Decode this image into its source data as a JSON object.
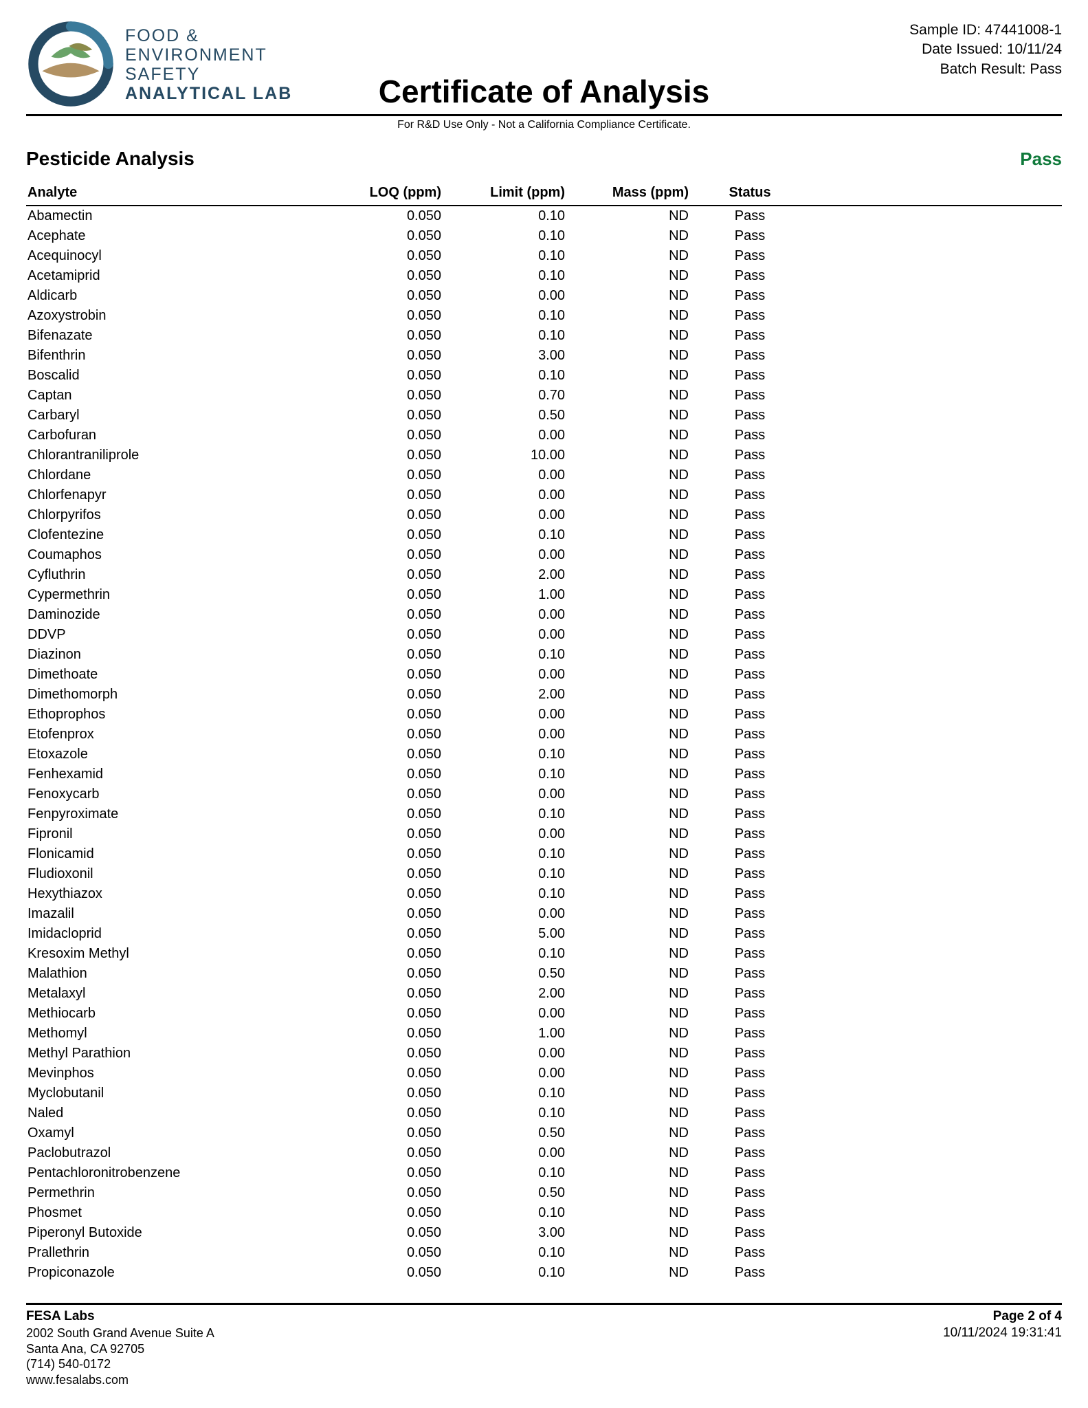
{
  "brand": {
    "line1": "FOOD &",
    "line2": "ENVIRONMENT",
    "line3": "SAFETY",
    "line4": "ANALYTICAL LAB",
    "logo_colors": {
      "outer_dark": "#264a63",
      "outer_mid": "#3b7a9a",
      "leaf_green": "#6aa368",
      "leaf_olive": "#8a8a4a",
      "band_tan": "#b29264"
    }
  },
  "meta": {
    "sample_id_label": "Sample ID: ",
    "sample_id": "47441008-1",
    "date_issued_label": "Date Issued: ",
    "date_issued": "10/11/24",
    "batch_result_label": "Batch Result: ",
    "batch_result": "Pass"
  },
  "doc_title": "Certificate of Analysis",
  "disclaimer": "For R&D Use Only - Not a California Compliance Certificate.",
  "section": {
    "title": "Pesticide Analysis",
    "result": "Pass",
    "result_color": "#107a3b"
  },
  "table": {
    "columns": [
      "Analyte",
      "LOQ (ppm)",
      "Limit (ppm)",
      "Mass (ppm)",
      "Status"
    ],
    "col_align": [
      "left",
      "right",
      "right",
      "right",
      "center"
    ],
    "rows": [
      [
        "Abamectin",
        "0.050",
        "0.10",
        "ND",
        "Pass"
      ],
      [
        "Acephate",
        "0.050",
        "0.10",
        "ND",
        "Pass"
      ],
      [
        "Acequinocyl",
        "0.050",
        "0.10",
        "ND",
        "Pass"
      ],
      [
        "Acetamiprid",
        "0.050",
        "0.10",
        "ND",
        "Pass"
      ],
      [
        "Aldicarb",
        "0.050",
        "0.00",
        "ND",
        "Pass"
      ],
      [
        "Azoxystrobin",
        "0.050",
        "0.10",
        "ND",
        "Pass"
      ],
      [
        "Bifenazate",
        "0.050",
        "0.10",
        "ND",
        "Pass"
      ],
      [
        "Bifenthrin",
        "0.050",
        "3.00",
        "ND",
        "Pass"
      ],
      [
        "Boscalid",
        "0.050",
        "0.10",
        "ND",
        "Pass"
      ],
      [
        "Captan",
        "0.050",
        "0.70",
        "ND",
        "Pass"
      ],
      [
        "Carbaryl",
        "0.050",
        "0.50",
        "ND",
        "Pass"
      ],
      [
        "Carbofuran",
        "0.050",
        "0.00",
        "ND",
        "Pass"
      ],
      [
        "Chlorantraniliprole",
        "0.050",
        "10.00",
        "ND",
        "Pass"
      ],
      [
        "Chlordane",
        "0.050",
        "0.00",
        "ND",
        "Pass"
      ],
      [
        "Chlorfenapyr",
        "0.050",
        "0.00",
        "ND",
        "Pass"
      ],
      [
        "Chlorpyrifos",
        "0.050",
        "0.00",
        "ND",
        "Pass"
      ],
      [
        "Clofentezine",
        "0.050",
        "0.10",
        "ND",
        "Pass"
      ],
      [
        "Coumaphos",
        "0.050",
        "0.00",
        "ND",
        "Pass"
      ],
      [
        "Cyfluthrin",
        "0.050",
        "2.00",
        "ND",
        "Pass"
      ],
      [
        "Cypermethrin",
        "0.050",
        "1.00",
        "ND",
        "Pass"
      ],
      [
        "Daminozide",
        "0.050",
        "0.00",
        "ND",
        "Pass"
      ],
      [
        "DDVP",
        "0.050",
        "0.00",
        "ND",
        "Pass"
      ],
      [
        "Diazinon",
        "0.050",
        "0.10",
        "ND",
        "Pass"
      ],
      [
        "Dimethoate",
        "0.050",
        "0.00",
        "ND",
        "Pass"
      ],
      [
        "Dimethomorph",
        "0.050",
        "2.00",
        "ND",
        "Pass"
      ],
      [
        "Ethoprophos",
        "0.050",
        "0.00",
        "ND",
        "Pass"
      ],
      [
        "Etofenprox",
        "0.050",
        "0.00",
        "ND",
        "Pass"
      ],
      [
        "Etoxazole",
        "0.050",
        "0.10",
        "ND",
        "Pass"
      ],
      [
        "Fenhexamid",
        "0.050",
        "0.10",
        "ND",
        "Pass"
      ],
      [
        "Fenoxycarb",
        "0.050",
        "0.00",
        "ND",
        "Pass"
      ],
      [
        "Fenpyroximate",
        "0.050",
        "0.10",
        "ND",
        "Pass"
      ],
      [
        "Fipronil",
        "0.050",
        "0.00",
        "ND",
        "Pass"
      ],
      [
        "Flonicamid",
        "0.050",
        "0.10",
        "ND",
        "Pass"
      ],
      [
        "Fludioxonil",
        "0.050",
        "0.10",
        "ND",
        "Pass"
      ],
      [
        "Hexythiazox",
        "0.050",
        "0.10",
        "ND",
        "Pass"
      ],
      [
        "Imazalil",
        "0.050",
        "0.00",
        "ND",
        "Pass"
      ],
      [
        "Imidacloprid",
        "0.050",
        "5.00",
        "ND",
        "Pass"
      ],
      [
        "Kresoxim Methyl",
        "0.050",
        "0.10",
        "ND",
        "Pass"
      ],
      [
        "Malathion",
        "0.050",
        "0.50",
        "ND",
        "Pass"
      ],
      [
        "Metalaxyl",
        "0.050",
        "2.00",
        "ND",
        "Pass"
      ],
      [
        "Methiocarb",
        "0.050",
        "0.00",
        "ND",
        "Pass"
      ],
      [
        "Methomyl",
        "0.050",
        "1.00",
        "ND",
        "Pass"
      ],
      [
        "Methyl Parathion",
        "0.050",
        "0.00",
        "ND",
        "Pass"
      ],
      [
        "Mevinphos",
        "0.050",
        "0.00",
        "ND",
        "Pass"
      ],
      [
        "Myclobutanil",
        "0.050",
        "0.10",
        "ND",
        "Pass"
      ],
      [
        "Naled",
        "0.050",
        "0.10",
        "ND",
        "Pass"
      ],
      [
        "Oxamyl",
        "0.050",
        "0.50",
        "ND",
        "Pass"
      ],
      [
        "Paclobutrazol",
        "0.050",
        "0.00",
        "ND",
        "Pass"
      ],
      [
        "Pentachloronitrobenzene",
        "0.050",
        "0.10",
        "ND",
        "Pass"
      ],
      [
        "Permethrin",
        "0.050",
        "0.50",
        "ND",
        "Pass"
      ],
      [
        "Phosmet",
        "0.050",
        "0.10",
        "ND",
        "Pass"
      ],
      [
        "Piperonyl Butoxide",
        "0.050",
        "3.00",
        "ND",
        "Pass"
      ],
      [
        "Prallethrin",
        "0.050",
        "0.10",
        "ND",
        "Pass"
      ],
      [
        "Propiconazole",
        "0.050",
        "0.10",
        "ND",
        "Pass"
      ]
    ]
  },
  "footer": {
    "company": "FESA Labs",
    "page_label": "Page 2 of 4",
    "timestamp": "10/11/2024 19:31:41",
    "addr1": "2002 South Grand Avenue Suite A",
    "addr2": "Santa Ana, CA 92705",
    "phone": "(714) 540-0172",
    "web": "www.fesalabs.com"
  }
}
